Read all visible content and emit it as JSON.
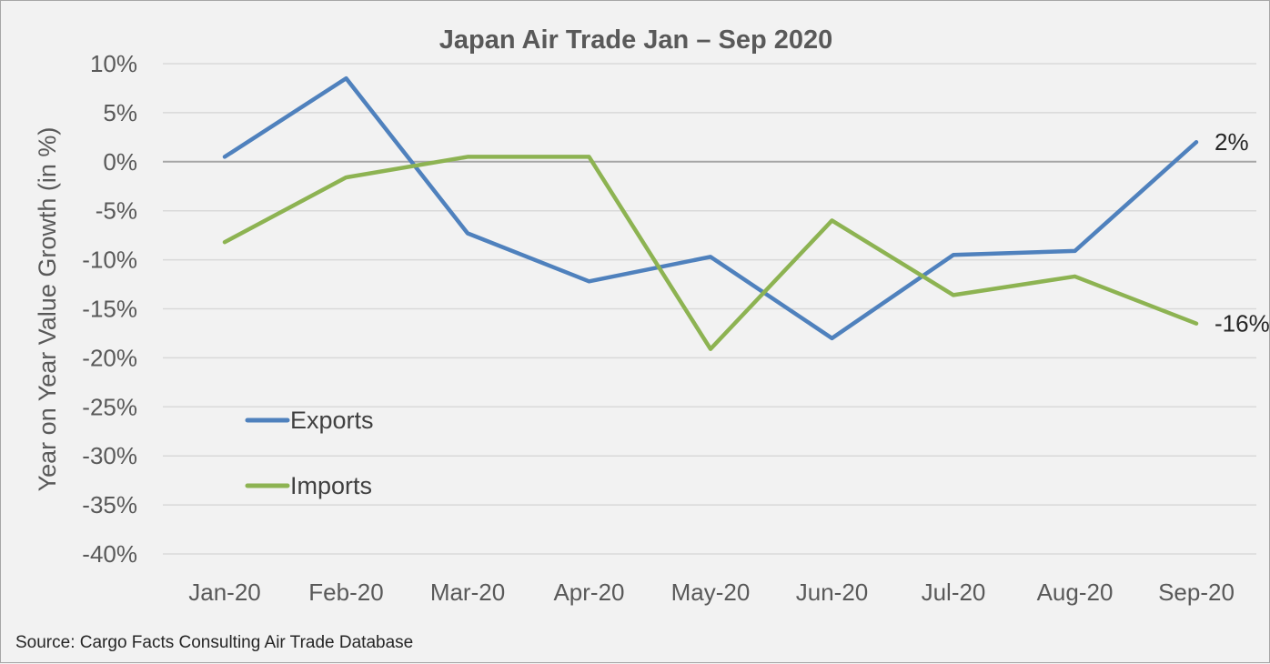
{
  "chart_data": {
    "type": "line",
    "title": "Japan Air Trade Jan – Sep 2020",
    "ylabel": "Year on Year Value Growth (in %)",
    "xlabel": "",
    "categories": [
      "Jan-20",
      "Feb-20",
      "Mar-20",
      "Apr-20",
      "May-20",
      "Jun-20",
      "Jul-20",
      "Aug-20",
      "Sep-20"
    ],
    "ylim": [
      -40,
      10
    ],
    "yticks": [
      10,
      5,
      0,
      -5,
      -10,
      -15,
      -20,
      -25,
      -30,
      -35,
      -40
    ],
    "ytick_labels": [
      "10%",
      "5%",
      "0%",
      "-5%",
      "-10%",
      "-15%",
      "-20%",
      "-25%",
      "-30%",
      "-35%",
      "-40%"
    ],
    "grid": true,
    "legend_position": "bottom-left",
    "series": [
      {
        "name": "Exports",
        "color": "#4f81bd",
        "values": [
          0.5,
          8.5,
          -7.3,
          -12.2,
          -9.7,
          -18.0,
          -9.5,
          -9.1,
          2.0
        ],
        "end_label": "2%"
      },
      {
        "name": "Imports",
        "color": "#8db352",
        "values": [
          -8.2,
          -1.6,
          0.5,
          0.5,
          -19.1,
          -6.0,
          -13.6,
          -11.7,
          -16.5
        ],
        "end_label": "-16%"
      }
    ]
  },
  "footer": {
    "source": "Source: Cargo Facts Consulting Air Trade Database"
  }
}
